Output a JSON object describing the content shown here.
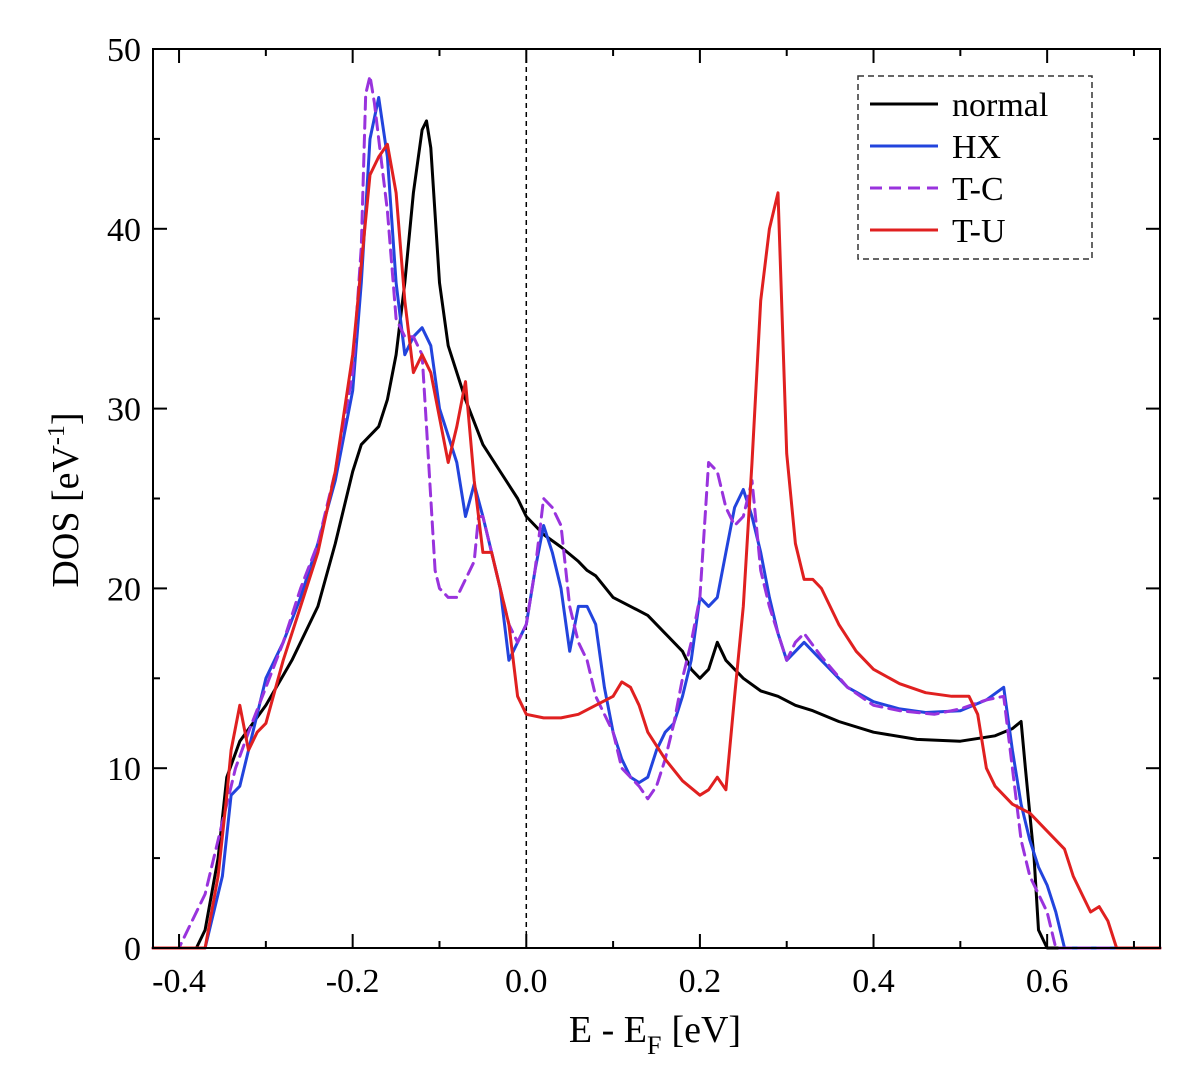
{
  "chart_data": {
    "type": "line",
    "title": "",
    "xlabel": {
      "main": "E - E",
      "sub": "F",
      "unit": "[eV]"
    },
    "ylabel": {
      "main": "DOS [eV",
      "sup": "-1",
      "end": "]"
    },
    "xlim": [
      -0.43,
      0.73
    ],
    "ylim": [
      0,
      50
    ],
    "xticks": [
      -0.4,
      -0.2,
      0.0,
      0.2,
      0.4,
      0.6
    ],
    "xtick_labels": [
      "-0.4",
      "-0.2",
      "0.0",
      "0.2",
      "0.4",
      "0.6"
    ],
    "yticks": [
      0,
      10,
      20,
      30,
      40,
      50
    ],
    "ytick_labels": [
      "0",
      "10",
      "20",
      "30",
      "40",
      "50"
    ],
    "reference_line_x": 0.0,
    "legend_position": "top-right",
    "series": [
      {
        "name": "normal",
        "color": "#000000",
        "dash": "solid",
        "points": [
          [
            -0.43,
            0
          ],
          [
            -0.38,
            0
          ],
          [
            -0.37,
            1
          ],
          [
            -0.355,
            5
          ],
          [
            -0.345,
            9.5
          ],
          [
            -0.33,
            11.5
          ],
          [
            -0.3,
            13.5
          ],
          [
            -0.27,
            16
          ],
          [
            -0.24,
            19
          ],
          [
            -0.22,
            22.5
          ],
          [
            -0.2,
            26.5
          ],
          [
            -0.19,
            28
          ],
          [
            -0.18,
            28.5
          ],
          [
            -0.17,
            29
          ],
          [
            -0.16,
            30.5
          ],
          [
            -0.15,
            33
          ],
          [
            -0.14,
            37
          ],
          [
            -0.13,
            42
          ],
          [
            -0.12,
            45.5
          ],
          [
            -0.115,
            46
          ],
          [
            -0.11,
            44.5
          ],
          [
            -0.1,
            37
          ],
          [
            -0.09,
            33.5
          ],
          [
            -0.07,
            30.5
          ],
          [
            -0.05,
            28
          ],
          [
            -0.03,
            26.5
          ],
          [
            -0.01,
            25
          ],
          [
            0.0,
            24
          ],
          [
            0.02,
            23
          ],
          [
            0.04,
            22.3
          ],
          [
            0.06,
            21.5
          ],
          [
            0.07,
            21
          ],
          [
            0.08,
            20.7
          ],
          [
            0.1,
            19.5
          ],
          [
            0.12,
            19
          ],
          [
            0.14,
            18.5
          ],
          [
            0.16,
            17.5
          ],
          [
            0.18,
            16.5
          ],
          [
            0.19,
            15.5
          ],
          [
            0.2,
            15
          ],
          [
            0.21,
            15.5
          ],
          [
            0.22,
            17
          ],
          [
            0.23,
            16
          ],
          [
            0.25,
            15
          ],
          [
            0.27,
            14.3
          ],
          [
            0.29,
            14
          ],
          [
            0.31,
            13.5
          ],
          [
            0.33,
            13.2
          ],
          [
            0.36,
            12.6
          ],
          [
            0.4,
            12
          ],
          [
            0.45,
            11.6
          ],
          [
            0.5,
            11.5
          ],
          [
            0.54,
            11.8
          ],
          [
            0.56,
            12.2
          ],
          [
            0.57,
            12.6
          ],
          [
            0.575,
            10
          ],
          [
            0.585,
            5
          ],
          [
            0.59,
            1
          ],
          [
            0.6,
            0
          ],
          [
            0.73,
            0
          ]
        ]
      },
      {
        "name": "HX",
        "color": "#2244dd",
        "dash": "solid",
        "points": [
          [
            -0.43,
            0
          ],
          [
            -0.37,
            0
          ],
          [
            -0.35,
            4
          ],
          [
            -0.34,
            8.5
          ],
          [
            -0.33,
            9
          ],
          [
            -0.32,
            11
          ],
          [
            -0.31,
            13
          ],
          [
            -0.3,
            15
          ],
          [
            -0.28,
            17
          ],
          [
            -0.26,
            19.5
          ],
          [
            -0.24,
            22.5
          ],
          [
            -0.22,
            26
          ],
          [
            -0.2,
            31
          ],
          [
            -0.19,
            37
          ],
          [
            -0.18,
            45
          ],
          [
            -0.17,
            47.3
          ],
          [
            -0.16,
            44
          ],
          [
            -0.15,
            37
          ],
          [
            -0.14,
            33
          ],
          [
            -0.13,
            34
          ],
          [
            -0.12,
            34.5
          ],
          [
            -0.11,
            33.5
          ],
          [
            -0.1,
            30
          ],
          [
            -0.08,
            27
          ],
          [
            -0.07,
            24
          ],
          [
            -0.06,
            25.8
          ],
          [
            -0.05,
            24
          ],
          [
            -0.04,
            22
          ],
          [
            -0.03,
            20
          ],
          [
            -0.02,
            16
          ],
          [
            -0.01,
            17
          ],
          [
            0.0,
            18
          ],
          [
            0.01,
            21
          ],
          [
            0.02,
            23.5
          ],
          [
            0.03,
            22
          ],
          [
            0.04,
            20
          ],
          [
            0.05,
            16.5
          ],
          [
            0.06,
            19
          ],
          [
            0.07,
            19
          ],
          [
            0.08,
            18
          ],
          [
            0.09,
            14.5
          ],
          [
            0.1,
            12
          ],
          [
            0.11,
            10.5
          ],
          [
            0.12,
            9.5
          ],
          [
            0.13,
            9.2
          ],
          [
            0.14,
            9.5
          ],
          [
            0.15,
            11
          ],
          [
            0.16,
            12
          ],
          [
            0.17,
            12.5
          ],
          [
            0.18,
            14
          ],
          [
            0.19,
            16
          ],
          [
            0.2,
            19.5
          ],
          [
            0.21,
            19
          ],
          [
            0.22,
            19.5
          ],
          [
            0.23,
            22
          ],
          [
            0.24,
            24.5
          ],
          [
            0.25,
            25.5
          ],
          [
            0.26,
            24
          ],
          [
            0.27,
            22
          ],
          [
            0.28,
            19.5
          ],
          [
            0.29,
            17.5
          ],
          [
            0.3,
            16
          ],
          [
            0.31,
            16.5
          ],
          [
            0.32,
            17
          ],
          [
            0.34,
            16
          ],
          [
            0.37,
            14.5
          ],
          [
            0.4,
            13.7
          ],
          [
            0.43,
            13.3
          ],
          [
            0.46,
            13.1
          ],
          [
            0.5,
            13.2
          ],
          [
            0.53,
            13.8
          ],
          [
            0.55,
            14.5
          ],
          [
            0.56,
            11
          ],
          [
            0.57,
            8
          ],
          [
            0.58,
            6
          ],
          [
            0.59,
            4.5
          ],
          [
            0.6,
            3.5
          ],
          [
            0.61,
            2
          ],
          [
            0.62,
            0
          ],
          [
            0.73,
            0
          ]
        ]
      },
      {
        "name": "T-C",
        "color": "#9933dd",
        "dash": "dashed",
        "points": [
          [
            -0.43,
            0
          ],
          [
            -0.4,
            0
          ],
          [
            -0.39,
            1
          ],
          [
            -0.37,
            3
          ],
          [
            -0.355,
            6
          ],
          [
            -0.345,
            8
          ],
          [
            -0.335,
            10
          ],
          [
            -0.32,
            12
          ],
          [
            -0.3,
            14.5
          ],
          [
            -0.28,
            17
          ],
          [
            -0.26,
            20
          ],
          [
            -0.24,
            22.5
          ],
          [
            -0.22,
            26.5
          ],
          [
            -0.2,
            32
          ],
          [
            -0.19,
            39
          ],
          [
            -0.185,
            47.5
          ],
          [
            -0.18,
            48.5
          ],
          [
            -0.175,
            47
          ],
          [
            -0.17,
            45
          ],
          [
            -0.16,
            41
          ],
          [
            -0.15,
            35
          ],
          [
            -0.14,
            34
          ],
          [
            -0.13,
            34
          ],
          [
            -0.12,
            33
          ],
          [
            -0.115,
            29
          ],
          [
            -0.11,
            25
          ],
          [
            -0.105,
            21
          ],
          [
            -0.1,
            20
          ],
          [
            -0.09,
            19.5
          ],
          [
            -0.08,
            19.5
          ],
          [
            -0.07,
            20.5
          ],
          [
            -0.06,
            21.5
          ],
          [
            -0.055,
            24
          ],
          [
            -0.05,
            24
          ],
          [
            -0.04,
            22
          ],
          [
            -0.03,
            20
          ],
          [
            -0.02,
            18
          ],
          [
            -0.01,
            17
          ],
          [
            0.0,
            18
          ],
          [
            0.01,
            21
          ],
          [
            0.02,
            25
          ],
          [
            0.03,
            24.5
          ],
          [
            0.04,
            23.5
          ],
          [
            0.05,
            19
          ],
          [
            0.06,
            17
          ],
          [
            0.07,
            16
          ],
          [
            0.08,
            14
          ],
          [
            0.09,
            13
          ],
          [
            0.1,
            12
          ],
          [
            0.11,
            10
          ],
          [
            0.12,
            9.5
          ],
          [
            0.13,
            9
          ],
          [
            0.14,
            8.3
          ],
          [
            0.15,
            9
          ],
          [
            0.16,
            10.5
          ],
          [
            0.17,
            12.5
          ],
          [
            0.18,
            15
          ],
          [
            0.19,
            17
          ],
          [
            0.2,
            19.5
          ],
          [
            0.21,
            27
          ],
          [
            0.22,
            26.5
          ],
          [
            0.23,
            24.5
          ],
          [
            0.24,
            23.5
          ],
          [
            0.25,
            24
          ],
          [
            0.26,
            26
          ],
          [
            0.27,
            21
          ],
          [
            0.28,
            19
          ],
          [
            0.29,
            17.5
          ],
          [
            0.3,
            16
          ],
          [
            0.31,
            17
          ],
          [
            0.32,
            17.5
          ],
          [
            0.34,
            16.2
          ],
          [
            0.37,
            14.5
          ],
          [
            0.4,
            13.5
          ],
          [
            0.43,
            13.2
          ],
          [
            0.47,
            13
          ],
          [
            0.5,
            13.3
          ],
          [
            0.53,
            13.8
          ],
          [
            0.55,
            14
          ],
          [
            0.56,
            10
          ],
          [
            0.57,
            6
          ],
          [
            0.58,
            4
          ],
          [
            0.59,
            3
          ],
          [
            0.6,
            2
          ],
          [
            0.61,
            0
          ],
          [
            0.73,
            0
          ]
        ]
      },
      {
        "name": "T-U",
        "color": "#e02020",
        "dash": "solid",
        "points": [
          [
            -0.43,
            0
          ],
          [
            -0.37,
            0
          ],
          [
            -0.355,
            4
          ],
          [
            -0.345,
            8.5
          ],
          [
            -0.34,
            11
          ],
          [
            -0.33,
            13.5
          ],
          [
            -0.32,
            11
          ],
          [
            -0.31,
            12
          ],
          [
            -0.3,
            12.5
          ],
          [
            -0.28,
            16
          ],
          [
            -0.26,
            19
          ],
          [
            -0.24,
            22
          ],
          [
            -0.22,
            26.5
          ],
          [
            -0.2,
            33
          ],
          [
            -0.19,
            38
          ],
          [
            -0.18,
            43
          ],
          [
            -0.17,
            44
          ],
          [
            -0.16,
            44.7
          ],
          [
            -0.15,
            42
          ],
          [
            -0.14,
            36
          ],
          [
            -0.13,
            32
          ],
          [
            -0.12,
            33
          ],
          [
            -0.11,
            32
          ],
          [
            -0.1,
            29.5
          ],
          [
            -0.09,
            27
          ],
          [
            -0.08,
            29
          ],
          [
            -0.07,
            31.5
          ],
          [
            -0.06,
            26
          ],
          [
            -0.05,
            22
          ],
          [
            -0.04,
            22
          ],
          [
            -0.03,
            20
          ],
          [
            -0.02,
            18
          ],
          [
            -0.01,
            14
          ],
          [
            0.0,
            13
          ],
          [
            0.02,
            12.8
          ],
          [
            0.04,
            12.8
          ],
          [
            0.06,
            13
          ],
          [
            0.08,
            13.5
          ],
          [
            0.1,
            14
          ],
          [
            0.11,
            14.8
          ],
          [
            0.12,
            14.5
          ],
          [
            0.13,
            13.5
          ],
          [
            0.14,
            12
          ],
          [
            0.16,
            10.5
          ],
          [
            0.18,
            9.3
          ],
          [
            0.2,
            8.5
          ],
          [
            0.21,
            8.8
          ],
          [
            0.22,
            9.5
          ],
          [
            0.23,
            8.8
          ],
          [
            0.24,
            14
          ],
          [
            0.25,
            19
          ],
          [
            0.26,
            27
          ],
          [
            0.27,
            36
          ],
          [
            0.28,
            40
          ],
          [
            0.29,
            42
          ],
          [
            0.3,
            27.5
          ],
          [
            0.31,
            22.5
          ],
          [
            0.32,
            20.5
          ],
          [
            0.33,
            20.5
          ],
          [
            0.34,
            20
          ],
          [
            0.36,
            18
          ],
          [
            0.38,
            16.5
          ],
          [
            0.4,
            15.5
          ],
          [
            0.43,
            14.7
          ],
          [
            0.46,
            14.2
          ],
          [
            0.49,
            14
          ],
          [
            0.51,
            14
          ],
          [
            0.52,
            13
          ],
          [
            0.53,
            10
          ],
          [
            0.54,
            9
          ],
          [
            0.56,
            8
          ],
          [
            0.58,
            7.5
          ],
          [
            0.6,
            6.5
          ],
          [
            0.62,
            5.5
          ],
          [
            0.63,
            4
          ],
          [
            0.64,
            3
          ],
          [
            0.65,
            2
          ],
          [
            0.66,
            2.3
          ],
          [
            0.67,
            1.5
          ],
          [
            0.68,
            0
          ],
          [
            0.73,
            0
          ]
        ]
      }
    ]
  }
}
